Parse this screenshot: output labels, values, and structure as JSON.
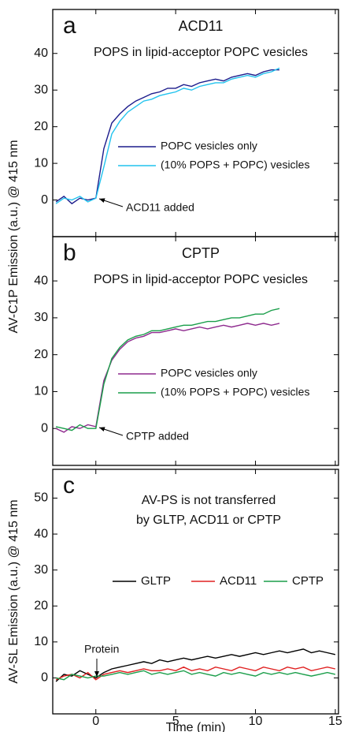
{
  "chart_data": [
    {
      "type": "line",
      "panel_label": "a",
      "title": "ACD11",
      "subtitle": "POPS in lipid-acceptor POPC vesicles",
      "annotation": "ACD11 added",
      "ylabel": "AV-C1P Emission (a.u.) @ 415 nm",
      "x": [
        -2.5,
        -2,
        -1.5,
        -1,
        -0.5,
        0,
        0.5,
        1,
        1.5,
        2,
        2.5,
        3,
        3.5,
        4,
        4.5,
        5,
        5.5,
        6,
        6.5,
        7,
        7.5,
        8,
        8.5,
        9,
        9.5,
        10,
        10.5,
        11,
        11.5
      ],
      "series": [
        {
          "name": "POPC vesicles only",
          "color": "#1c1c8c",
          "values": [
            -0.5,
            1,
            -1,
            0.5,
            0,
            0.5,
            14,
            21,
            23.5,
            25.5,
            27,
            28,
            29,
            29.5,
            30.5,
            30.5,
            31.5,
            31,
            32,
            32.5,
            33,
            32.5,
            33.5,
            34,
            34.5,
            34,
            35,
            35.5,
            35.5
          ]
        },
        {
          "name": "(10% POPS + POPC) vesicles",
          "color": "#22c3ee",
          "values": [
            -1,
            0.5,
            0,
            1,
            -0.5,
            0.5,
            9,
            18,
            21.5,
            24,
            25.5,
            27,
            27.5,
            28.5,
            29,
            29.5,
            30.5,
            30,
            31,
            31.5,
            32,
            32,
            33,
            33.5,
            34,
            33.5,
            34.5,
            35,
            36
          ]
        }
      ],
      "xlim": [
        -2.7,
        15.2
      ],
      "xticks": [
        0,
        5,
        10,
        15
      ],
      "ylim": [
        -10,
        52
      ],
      "yticks": [
        0,
        10,
        20,
        30,
        40
      ],
      "legend": "center-right"
    },
    {
      "type": "line",
      "panel_label": "b",
      "title": "CPTP",
      "subtitle": "POPS in lipid-acceptor POPC vesicles",
      "annotation": "CPTP added",
      "x": [
        -2.5,
        -2,
        -1.5,
        -1,
        -0.5,
        0,
        0.5,
        1,
        1.5,
        2,
        2.5,
        3,
        3.5,
        4,
        4.5,
        5,
        5.5,
        6,
        6.5,
        7,
        7.5,
        8,
        8.5,
        9,
        9.5,
        10,
        10.5,
        11,
        11.5
      ],
      "series": [
        {
          "name": "POPC vesicles only",
          "color": "#8e2a8e",
          "values": [
            0,
            -1,
            0.5,
            0,
            1,
            0.5,
            13,
            18.5,
            21.5,
            23.5,
            24.5,
            25,
            26,
            26,
            26.5,
            27,
            26.5,
            27,
            27.5,
            27,
            27.5,
            28,
            27.5,
            28,
            28.5,
            28,
            28.5,
            28,
            28.5
          ]
        },
        {
          "name": "(10% POPS + POPC) vesicles",
          "color": "#1a9e4a",
          "values": [
            0.5,
            0,
            -0.5,
            1,
            0,
            0,
            12,
            19,
            22,
            24,
            25,
            25.5,
            26.5,
            26.5,
            27,
            27.5,
            28,
            28,
            28.5,
            29,
            29,
            29.5,
            30,
            30,
            30.5,
            31,
            31,
            32,
            32.5
          ]
        }
      ],
      "xlim": [
        -2.7,
        15.2
      ],
      "xticks": [
        0,
        5,
        10,
        15
      ],
      "ylim": [
        -10,
        52
      ],
      "yticks": [
        0,
        10,
        20,
        30,
        40
      ],
      "legend": "center-right"
    },
    {
      "type": "line",
      "panel_label": "c",
      "title": "AV-PS is not transferred",
      "subtitle": "by GLTP, ACD11 or CPTP",
      "annotation": "Protein",
      "ylabel": "AV-SL Emission (a.u.) @ 415 nm",
      "xlabel": "Time (min)",
      "x": [
        -2.5,
        -2,
        -1.5,
        -1,
        -0.5,
        0,
        0.5,
        1,
        1.5,
        2,
        2.5,
        3,
        3.5,
        4,
        4.5,
        5,
        5.5,
        6,
        6.5,
        7,
        7.5,
        8,
        8.5,
        9,
        9.5,
        10,
        10.5,
        11,
        11.5,
        12,
        12.5,
        13,
        13.5,
        14,
        14.5,
        15
      ],
      "series": [
        {
          "name": "GLTP",
          "color": "#000000",
          "values": [
            -1,
            1,
            0.5,
            2,
            1,
            0,
            1.5,
            2.5,
            3,
            3.5,
            4,
            4.5,
            4,
            5,
            4.5,
            5,
            5.5,
            5,
            5.5,
            6,
            5.5,
            6,
            6.5,
            6,
            6.5,
            7,
            6.5,
            7,
            7.5,
            7,
            7.5,
            8,
            7,
            7.5,
            7,
            6.5
          ]
        },
        {
          "name": "ACD11",
          "color": "#e02020",
          "values": [
            -0.5,
            0.5,
            1,
            0,
            1.5,
            -0.5,
            1,
            1.5,
            2,
            1.5,
            2,
            2.5,
            2,
            2,
            2.5,
            2,
            3,
            2,
            2.5,
            2,
            3,
            2.5,
            2,
            3,
            2.5,
            2,
            3,
            2.5,
            2,
            3,
            2.5,
            3,
            2,
            2.5,
            3,
            2.5
          ]
        },
        {
          "name": "CPTP",
          "color": "#1a9e4a",
          "values": [
            0,
            -0.5,
            1,
            0.5,
            0,
            0.5,
            0.5,
            1,
            1.5,
            1,
            1.5,
            2,
            1,
            1.5,
            1,
            1.5,
            2,
            1,
            1.5,
            1,
            0.5,
            1.5,
            1,
            1.5,
            1,
            0.5,
            1.5,
            1,
            1.5,
            1,
            1.5,
            1,
            0.5,
            1,
            1.5,
            1
          ]
        }
      ],
      "xlim": [
        -2.7,
        15.2
      ],
      "xticks": [
        0,
        5,
        10,
        15
      ],
      "ylim": [
        -10,
        58
      ],
      "yticks": [
        0,
        10,
        20,
        30,
        40,
        50
      ],
      "legend": "upper-center"
    }
  ]
}
